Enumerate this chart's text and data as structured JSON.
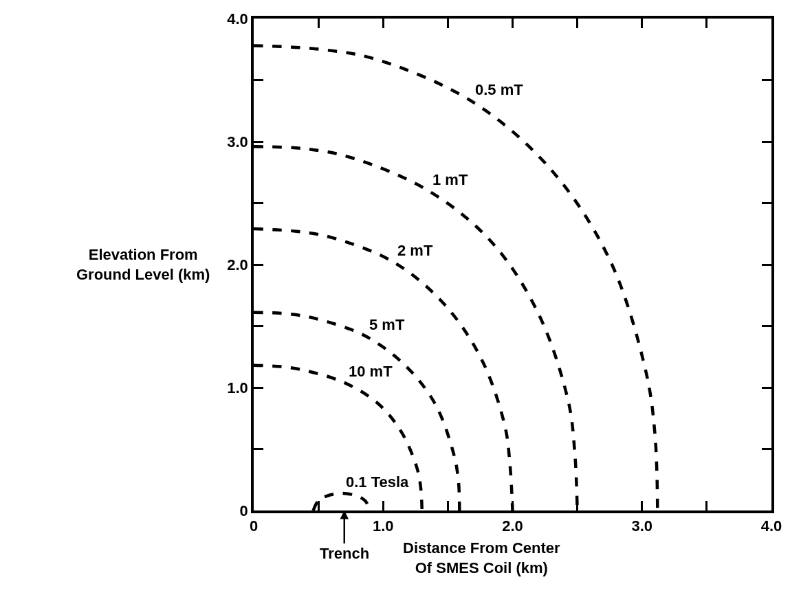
{
  "chart_data": {
    "type": "line",
    "xlabel": "Distance From Center\nOf SMES Coil (km)",
    "ylabel": "Elevation From\nGround Level (km)",
    "xlim": [
      0,
      4
    ],
    "ylim": [
      0,
      4
    ],
    "xticks": [
      0,
      {
        "value": 0.5,
        "label": null
      },
      {
        "value": 1,
        "label": "1.0"
      },
      {
        "value": 1.5,
        "label": null
      },
      {
        "value": 2,
        "label": "2.0"
      },
      {
        "value": 2.5,
        "label": null
      },
      {
        "value": 3,
        "label": "3.0"
      },
      {
        "value": 3.5,
        "label": null
      },
      {
        "value": 4,
        "label": "4.0"
      }
    ],
    "yticks": [
      0,
      {
        "value": 0.5,
        "label": null
      },
      {
        "value": 1,
        "label": "1.0"
      },
      {
        "value": 1.5,
        "label": null
      },
      {
        "value": 2,
        "label": "2.0"
      },
      {
        "value": 2.5,
        "label": null
      },
      {
        "value": 3,
        "label": "3.0"
      },
      {
        "value": 3.5,
        "label": null
      },
      {
        "value": 4,
        "label": "4.0"
      }
    ],
    "grid": false,
    "legend": false,
    "marker": "none",
    "line_style": "dashed",
    "series": [
      {
        "name": "0.5 mT",
        "color": "#000000",
        "x": [
          0,
          0.51,
          0.94,
          1.68,
          2.29,
          2.75,
          3.03,
          3.1,
          3.12
        ],
        "values": [
          3.78,
          3.75,
          3.67,
          3.33,
          2.78,
          2.04,
          1.13,
          0.62,
          0
        ]
      },
      {
        "name": "1 mT",
        "color": "#000000",
        "x": [
          0,
          0.41,
          0.75,
          1.35,
          1.84,
          2.2,
          2.43,
          2.48,
          2.5
        ],
        "values": [
          2.96,
          2.94,
          2.87,
          2.6,
          2.18,
          1.6,
          0.89,
          0.48,
          0
        ]
      },
      {
        "name": "2 mT",
        "color": "#000000",
        "x": [
          0,
          0.33,
          0.6,
          1.08,
          1.47,
          1.76,
          1.94,
          1.98,
          2.0
        ],
        "values": [
          2.29,
          2.27,
          2.22,
          2.02,
          1.68,
          1.23,
          0.69,
          0.37,
          0
        ]
      },
      {
        "name": "5 mT",
        "color": "#000000",
        "x": [
          0,
          0.26,
          0.48,
          0.86,
          1.17,
          1.4,
          1.54,
          1.58,
          1.59
        ],
        "values": [
          1.61,
          1.6,
          1.56,
          1.42,
          1.18,
          0.87,
          0.48,
          0.26,
          0
        ]
      },
      {
        "name": "10 mT",
        "color": "#000000",
        "x": [
          0,
          0.21,
          0.39,
          0.7,
          0.96,
          1.14,
          1.26,
          1.29,
          1.3
        ],
        "values": [
          1.18,
          1.17,
          1.14,
          1.04,
          0.87,
          0.64,
          0.35,
          0.19,
          0
        ]
      },
      {
        "name": "0.1 Tesla",
        "color": "#000000",
        "x": [
          0.46,
          0.5,
          0.57,
          0.68,
          0.79,
          0.86,
          0.9
        ],
        "values": [
          0,
          0.08,
          0.12,
          0.14,
          0.12,
          0.08,
          0
        ]
      }
    ],
    "annotations": [
      "Trench"
    ]
  }
}
